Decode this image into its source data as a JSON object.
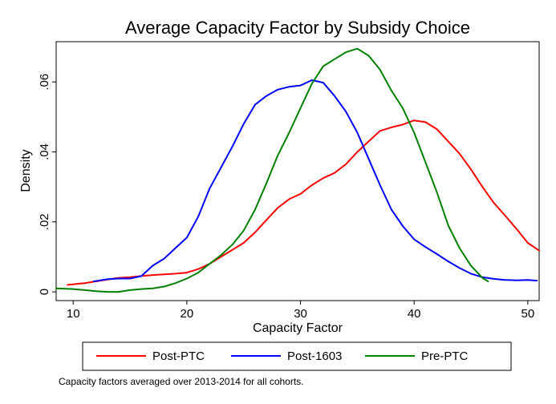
{
  "chart_data": {
    "type": "line",
    "title": "Average Capacity Factor by Subsidy Choice",
    "xlabel": "Capacity Factor",
    "ylabel": "Density",
    "xlim": [
      8.5,
      51
    ],
    "ylim": [
      -0.0025,
      0.0715
    ],
    "xticks": [
      10,
      20,
      30,
      40,
      50
    ],
    "xtick_labels": [
      "10",
      "20",
      "30",
      "40",
      "50"
    ],
    "yticks": [
      0,
      0.02,
      0.04,
      0.06
    ],
    "ytick_labels": [
      "0",
      ".02",
      ".04",
      ".06"
    ],
    "grid": false,
    "legend_position": "bottom",
    "note": "Capacity factors averaged over 2013-2014 for all cohorts.",
    "series": [
      {
        "name": "Post-PTC",
        "color": "#ff0000",
        "x": [
          9.5,
          11,
          12,
          13,
          14,
          15,
          16,
          17,
          18,
          19,
          20,
          21,
          22,
          23,
          24,
          25,
          26,
          27,
          28,
          29,
          30,
          31,
          32,
          33,
          34,
          35,
          36,
          37,
          38,
          39,
          40,
          41,
          42,
          43,
          44,
          45,
          46,
          47,
          48,
          49,
          50,
          51
        ],
        "y": [
          0.002,
          0.0025,
          0.003,
          0.0035,
          0.004,
          0.0042,
          0.0045,
          0.0048,
          0.005,
          0.0052,
          0.0055,
          0.0065,
          0.008,
          0.01,
          0.012,
          0.014,
          0.017,
          0.0205,
          0.024,
          0.0265,
          0.028,
          0.0305,
          0.0325,
          0.034,
          0.0365,
          0.04,
          0.043,
          0.046,
          0.047,
          0.0478,
          0.049,
          0.0485,
          0.0465,
          0.043,
          0.0395,
          0.035,
          0.03,
          0.0255,
          0.0218,
          0.018,
          0.014,
          0.0118
        ]
      },
      {
        "name": "Post-1603",
        "color": "#0000ff",
        "x": [
          11.8,
          13,
          14,
          15,
          16,
          17,
          18,
          19,
          20,
          21,
          22,
          23,
          24,
          25,
          26,
          27,
          28,
          29,
          30,
          31,
          32,
          33,
          34,
          35,
          36,
          37,
          38,
          39,
          40,
          41,
          42,
          43,
          44,
          45,
          46,
          47,
          48,
          49,
          50,
          50.8
        ],
        "y": [
          0.003,
          0.0036,
          0.0038,
          0.0038,
          0.0045,
          0.0075,
          0.0095,
          0.0125,
          0.0155,
          0.0215,
          0.0295,
          0.0355,
          0.0415,
          0.048,
          0.0535,
          0.056,
          0.0578,
          0.0586,
          0.059,
          0.0605,
          0.0598,
          0.056,
          0.0515,
          0.0455,
          0.038,
          0.0305,
          0.0235,
          0.0188,
          0.015,
          0.0128,
          0.0108,
          0.0087,
          0.0068,
          0.0052,
          0.0042,
          0.0037,
          0.0034,
          0.0033,
          0.0034,
          0.0032
        ]
      },
      {
        "name": "Pre-PTC",
        "color": "#008000",
        "x": [
          8.5,
          10,
          11,
          12,
          13,
          14,
          15,
          16,
          17,
          18,
          19,
          20,
          21,
          22,
          23,
          24,
          25,
          26,
          27,
          28,
          29,
          30,
          31,
          32,
          33,
          34,
          35,
          36,
          37,
          38,
          39,
          40,
          41,
          42,
          43,
          44,
          45,
          46,
          46.5
        ],
        "y": [
          0.001,
          0.0008,
          0.0005,
          0.0002,
          0.0,
          0.0,
          0.0005,
          0.0008,
          0.001,
          0.0015,
          0.0025,
          0.0038,
          0.0055,
          0.008,
          0.0105,
          0.0135,
          0.0175,
          0.0235,
          0.031,
          0.039,
          0.0455,
          0.0525,
          0.0595,
          0.0645,
          0.0665,
          0.0685,
          0.0695,
          0.0675,
          0.0635,
          0.0575,
          0.0525,
          0.0455,
          0.037,
          0.0285,
          0.019,
          0.0125,
          0.0075,
          0.004,
          0.003
        ]
      }
    ]
  }
}
